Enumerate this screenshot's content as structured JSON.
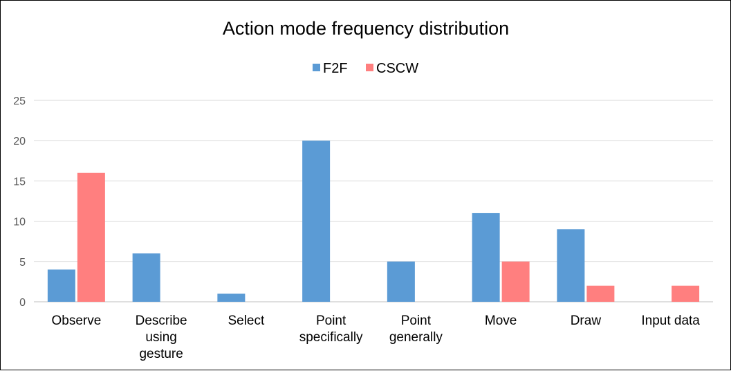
{
  "chart_data": {
    "type": "bar",
    "title": "Action mode frequency distribution",
    "xlabel": "",
    "ylabel": "",
    "categories": [
      [
        "Observe"
      ],
      [
        "Describe",
        "using",
        "gesture"
      ],
      [
        "Select"
      ],
      [
        "Point",
        "specifically"
      ],
      [
        "Point",
        "generally"
      ],
      [
        "Move"
      ],
      [
        "Draw"
      ],
      [
        "Input data"
      ]
    ],
    "series": [
      {
        "name": "F2F",
        "color": "#5B9BD5",
        "values": [
          4,
          6,
          1,
          20,
          5,
          11,
          9,
          0
        ]
      },
      {
        "name": "CSCW",
        "color": "#FF7F7F",
        "values": [
          16,
          0,
          0,
          0,
          0,
          5,
          2,
          2
        ]
      }
    ],
    "ylim": [
      0,
      25
    ],
    "yticks": [
      0,
      5,
      10,
      15,
      20,
      25
    ],
    "grid": true,
    "legend": "top-center"
  }
}
